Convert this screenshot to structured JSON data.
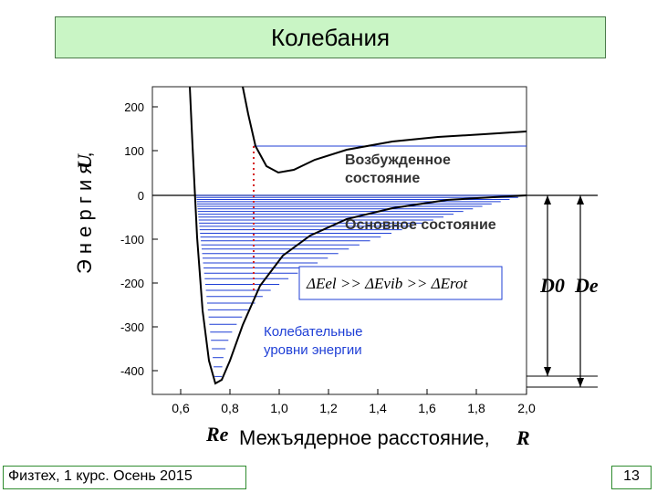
{
  "header": {
    "title": "Колебания"
  },
  "footer": {
    "course": "Физтех, 1 курс. Осень 2015",
    "page": "13"
  },
  "diagram": {
    "y_ticks": [
      "200",
      "100",
      "0",
      "-100",
      "-200",
      "-300",
      "-400"
    ],
    "x_ticks": [
      "0,6",
      "0,8",
      "1,0",
      "1,2",
      "1,4",
      "1,6",
      "1,8",
      "2,0"
    ],
    "y_axis_title": "Э н е р г и я ,",
    "y_axis_symbol": "U",
    "excited_label_line1": "Возбужденное",
    "excited_label_line2": "состояние",
    "ground_label": "Основное состояние",
    "formula": "ΔEel >> ΔEvib >> ΔErot",
    "vib_label_line1": "Колебательные",
    "vib_label_line2": "уровни энергии",
    "d0_label": "D0",
    "de_label": "De",
    "re_label": "Re",
    "x_axis_title": "Межъядерное расстояние,",
    "x_axis_symbol": "R",
    "colors": {
      "levels": "#1f3fd6",
      "curve": "#000000",
      "dotted": "#d62020",
      "title_bg": "#c9f5c5"
    }
  }
}
